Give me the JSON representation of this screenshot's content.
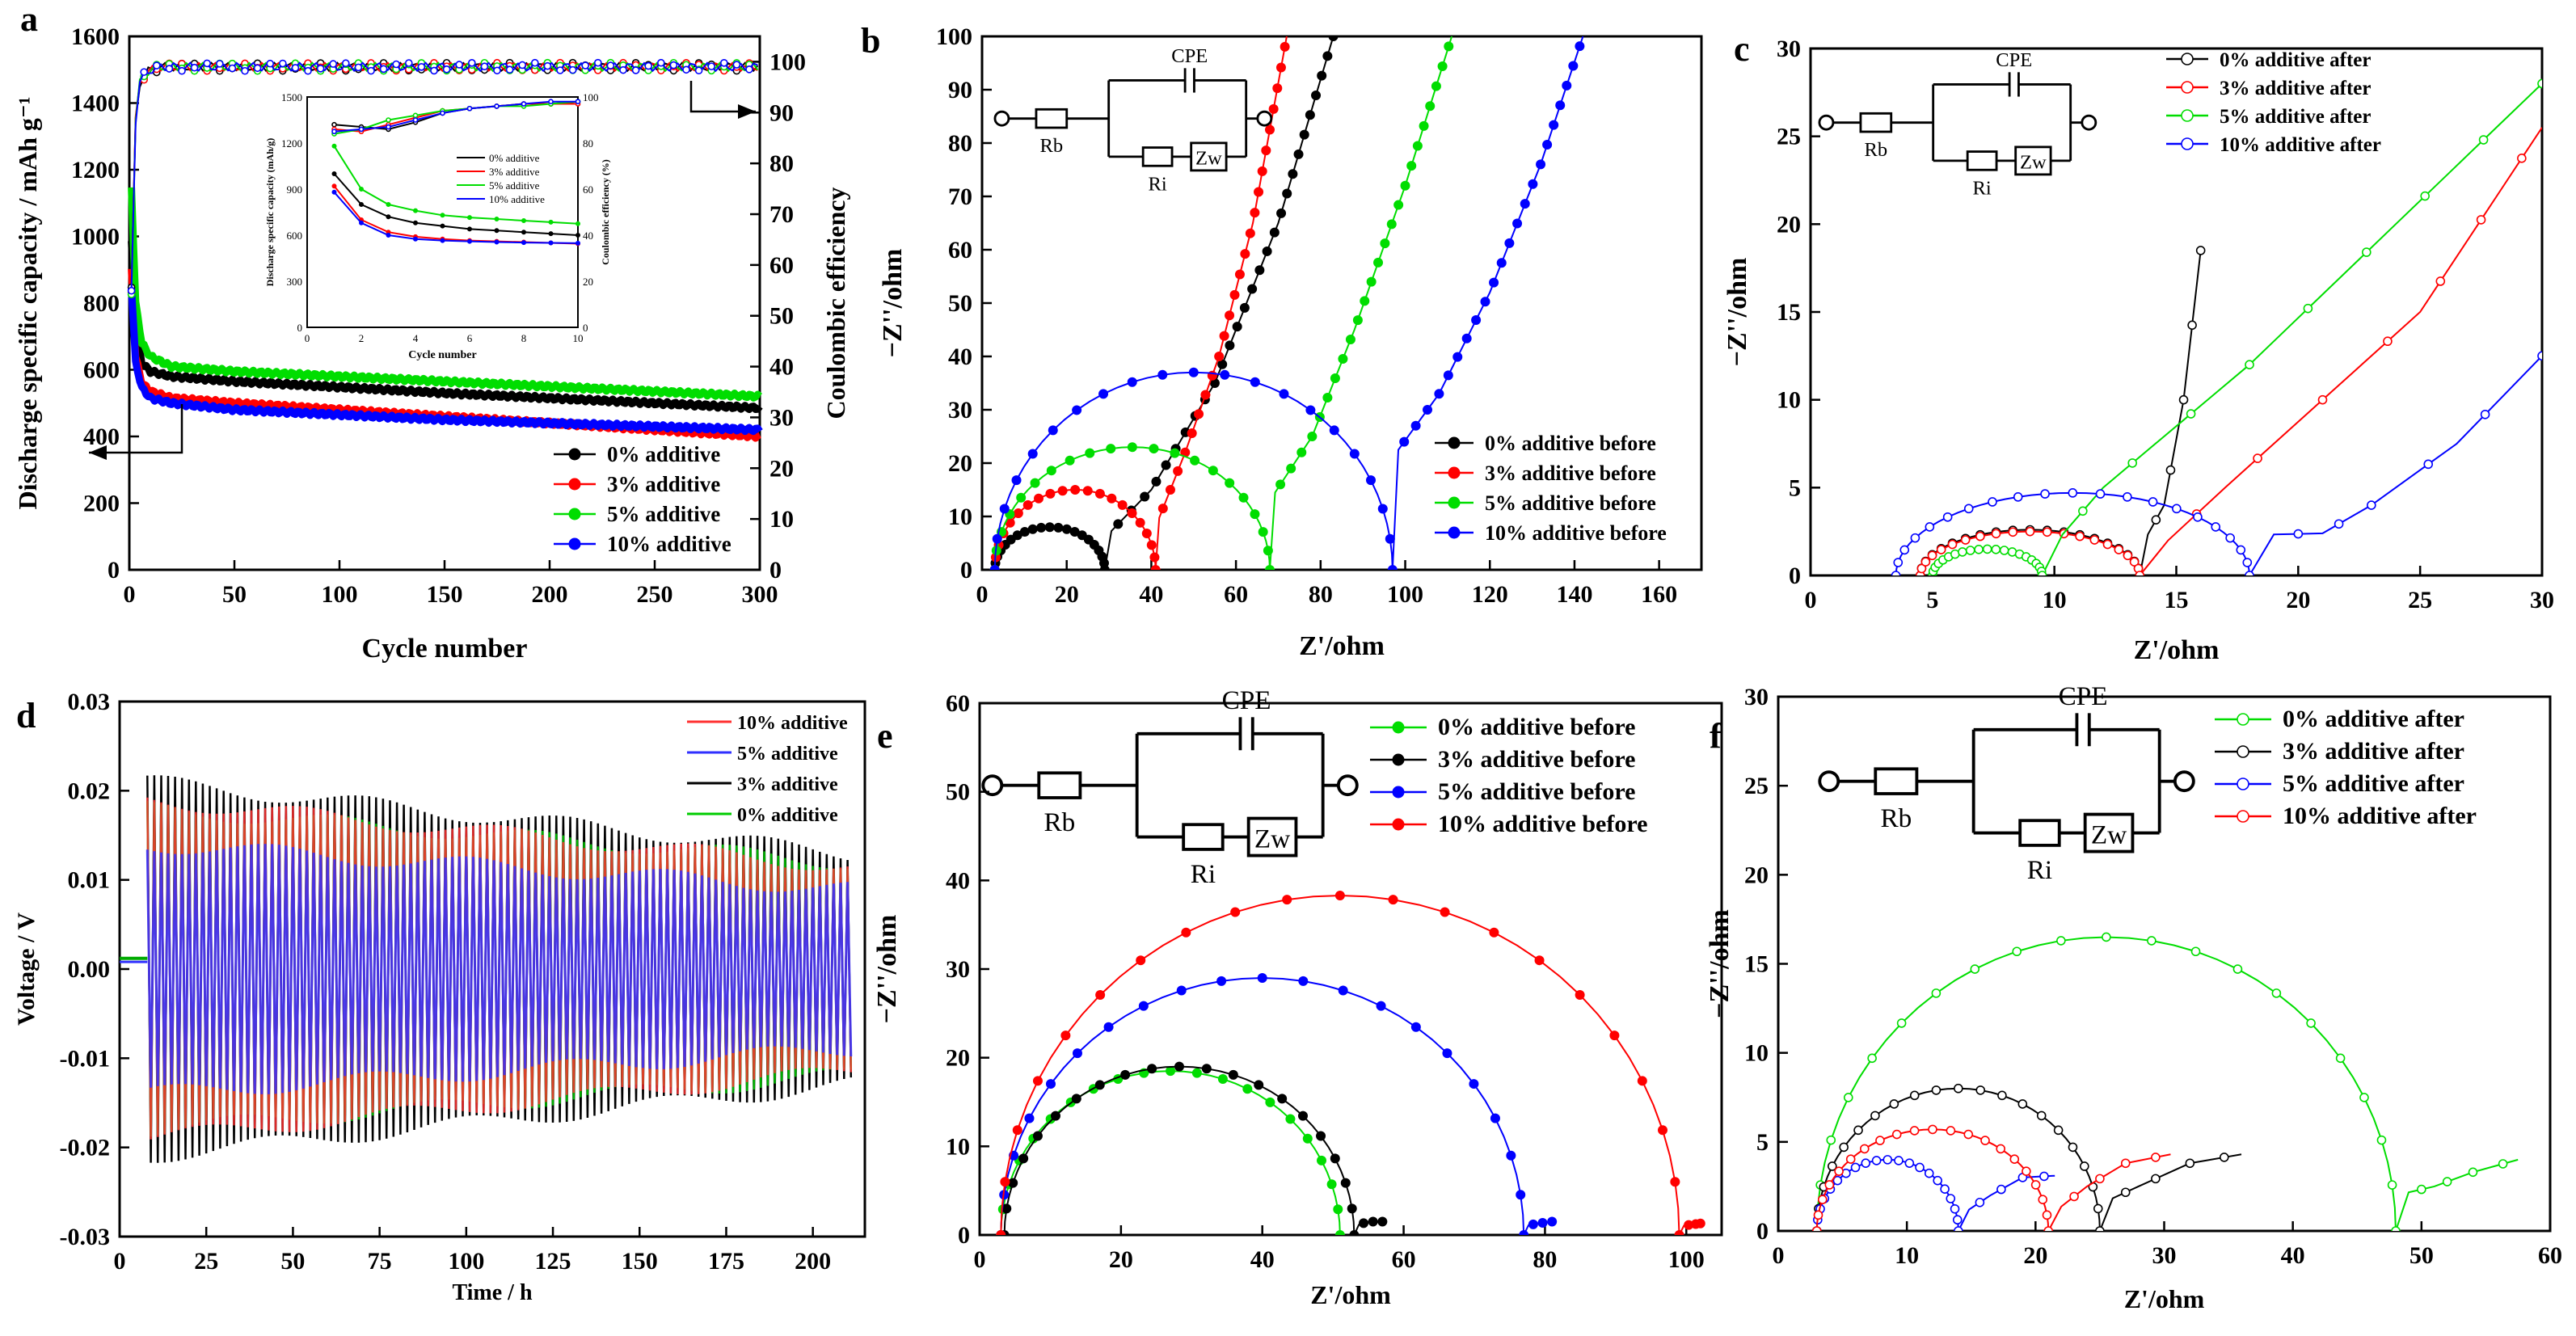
{
  "figure": {
    "panels": [
      "a",
      "b",
      "c",
      "d",
      "e",
      "f"
    ]
  },
  "chart_data": [
    {
      "id": "a",
      "type": "scatter",
      "panel_label": "a",
      "xlabel": "Cycle number",
      "ylabel": "Discharge specific capacity / mAh g⁻¹",
      "y2label": "Coulombic efficiency",
      "xlim": [
        0,
        300
      ],
      "ylim": [
        0,
        1600
      ],
      "y2lim": [
        0,
        105
      ],
      "xticks": [
        0,
        50,
        100,
        150,
        200,
        250,
        300
      ],
      "yticks": [
        0,
        200,
        400,
        600,
        800,
        1000,
        1200,
        1400,
        1600
      ],
      "y2ticks": [
        0,
        10,
        20,
        30,
        40,
        50,
        60,
        70,
        80,
        90,
        100
      ],
      "legend": [
        "0% additive",
        "3% additive",
        "5% additive",
        "10% additive"
      ],
      "colors": [
        "#000000",
        "#ff0000",
        "#00dd00",
        "#0000ff"
      ],
      "series": [
        {
          "name": "0% additive",
          "x": [
            1,
            3,
            6,
            10,
            20,
            50,
            100,
            150,
            200,
            250,
            300
          ],
          "values": [
            980,
            720,
            620,
            595,
            580,
            565,
            548,
            530,
            515,
            500,
            485
          ]
        },
        {
          "name": "3% additive",
          "x": [
            1,
            3,
            6,
            10,
            20,
            50,
            100,
            150,
            200,
            250,
            300
          ],
          "values": [
            900,
            640,
            560,
            535,
            515,
            500,
            480,
            460,
            440,
            420,
            400
          ]
        },
        {
          "name": "5% additive",
          "x": [
            1,
            3,
            6,
            10,
            20,
            50,
            100,
            150,
            200,
            250,
            300
          ],
          "values": [
            1150,
            800,
            680,
            640,
            610,
            595,
            580,
            565,
            550,
            535,
            520
          ]
        },
        {
          "name": "10% additive",
          "x": [
            1,
            3,
            6,
            10,
            20,
            50,
            100,
            150,
            200,
            250,
            300
          ],
          "values": [
            850,
            620,
            545,
            515,
            500,
            480,
            465,
            450,
            440,
            430,
            420
          ]
        }
      ],
      "coulombic_efficiency": {
        "x": [
          1,
          2,
          4,
          8,
          15,
          300
        ],
        "values": [
          55,
          82,
          95,
          98,
          99,
          99
        ]
      },
      "inset": {
        "xlabel": "Cycle number",
        "ylabel": "Discharge specific capacity (mAh/g)",
        "y2label": "Coulombic efficiency (%)",
        "xlim": [
          0,
          10
        ],
        "ylim": [
          0,
          1500
        ],
        "y2lim": [
          0,
          100
        ],
        "xticks": [
          0,
          2,
          4,
          6,
          8,
          10
        ],
        "yticks": [
          0,
          300,
          600,
          900,
          1200,
          1500
        ],
        "y2ticks": [
          0,
          20,
          40,
          60,
          80,
          100
        ],
        "legend": [
          "0% additive",
          "3% additive",
          "5% additive",
          "10% additive"
        ],
        "x": [
          1,
          2,
          3,
          4,
          5,
          6,
          7,
          8,
          9,
          10
        ],
        "capacity": [
          [
            1000,
            800,
            720,
            680,
            660,
            640,
            630,
            620,
            610,
            600
          ],
          [
            920,
            700,
            620,
            590,
            575,
            565,
            560,
            555,
            550,
            545
          ],
          [
            1180,
            900,
            800,
            760,
            730,
            715,
            705,
            695,
            685,
            675
          ],
          [
            880,
            680,
            600,
            575,
            565,
            560,
            555,
            552,
            550,
            548
          ]
        ],
        "efficiency": [
          [
            88,
            87,
            86,
            89,
            93,
            95,
            96,
            97,
            97,
            98
          ],
          [
            86,
            85,
            88,
            91,
            94,
            95,
            96,
            97,
            97,
            97
          ],
          [
            84,
            86,
            90,
            92,
            94,
            95,
            96,
            96,
            97,
            98
          ],
          [
            85,
            86,
            87,
            90,
            93,
            95,
            96,
            97,
            98,
            98
          ]
        ]
      }
    },
    {
      "id": "b",
      "type": "scatter",
      "panel_label": "b",
      "xlabel": "Z'/ohm",
      "ylabel": "−Z''/ohm",
      "xlim": [
        0,
        170
      ],
      "ylim": [
        0,
        100
      ],
      "xticks": [
        0,
        20,
        40,
        60,
        80,
        100,
        120,
        140,
        160
      ],
      "yticks": [
        0,
        10,
        20,
        30,
        40,
        50,
        60,
        70,
        80,
        90,
        100
      ],
      "legend": [
        "0% additive before",
        "3% additive before",
        "5% additive before",
        "10% additive before"
      ],
      "colors": [
        "#000000",
        "#ff0000",
        "#00dd00",
        "#0000ff"
      ],
      "markers": "filled",
      "series": [
        {
          "name": "0% additive before",
          "rs": 3,
          "semi_end": 29,
          "tail": [
            [
              29,
              6
            ],
            [
              40,
              15
            ],
            [
              55,
              35
            ],
            [
              70,
              65
            ],
            [
              83,
              100
            ]
          ]
        },
        {
          "name": "3% additive before",
          "rs": 3,
          "semi_end": 41,
          "tail": [
            [
              41,
              8
            ],
            [
              48,
              22
            ],
            [
              56,
              40
            ],
            [
              64,
              65
            ],
            [
              72,
              100
            ]
          ]
        },
        {
          "name": "5% additive before",
          "rs": 3,
          "semi_end": 68,
          "tail": [
            [
              68,
              13
            ],
            [
              78,
              25
            ],
            [
              88,
              45
            ],
            [
              100,
              72
            ],
            [
              111,
              100
            ]
          ]
        },
        {
          "name": "10% additive before",
          "rs": 3,
          "semi_end": 97,
          "tail": [
            [
              97,
              21
            ],
            [
              108,
              33
            ],
            [
              120,
              52
            ],
            [
              132,
              76
            ],
            [
              142,
              100
            ]
          ]
        }
      ],
      "semicircle_peak": [
        8,
        15,
        23,
        37
      ],
      "circuit": {
        "cpe": "CPE",
        "rb": "Rb",
        "ri": "Ri",
        "zw": "Zw"
      }
    },
    {
      "id": "c",
      "type": "scatter",
      "panel_label": "c",
      "xlabel": "Z'/ohm",
      "ylabel": "−Z''/ohm",
      "xlim": [
        0,
        30
      ],
      "ylim": [
        0,
        30
      ],
      "xticks": [
        0,
        5,
        10,
        15,
        20,
        25,
        30
      ],
      "yticks": [
        0,
        5,
        10,
        15,
        20,
        25,
        30
      ],
      "legend": [
        "0% additive after",
        "3% additive after",
        "5% additive after",
        "10% additive after"
      ],
      "colors": [
        "#000000",
        "#ff0000",
        "#00dd00",
        "#0000ff"
      ],
      "markers": "open",
      "series": [
        {
          "name": "0% additive after",
          "rs": 4.5,
          "semi_end": 13.5,
          "peak": 2.6,
          "tail": [
            [
              13.5,
              1.5
            ],
            [
              14.5,
              4
            ],
            [
              15.3,
              10
            ],
            [
              16,
              18.5
            ]
          ]
        },
        {
          "name": "3% additive after",
          "rs": 4.5,
          "semi_end": 13.5,
          "peak": 2.5,
          "tail": [
            [
              13.5,
              0.5
            ],
            [
              17,
              5
            ],
            [
              21,
              10
            ],
            [
              25,
              15
            ],
            [
              30,
              25.5
            ]
          ]
        },
        {
          "name": "5% additive after",
          "rs": 5,
          "semi_end": 9.5,
          "peak": 1.5,
          "tail": [
            [
              9.5,
              1
            ],
            [
              12,
              5
            ],
            [
              18,
              12
            ],
            [
              24,
              20
            ],
            [
              30,
              28
            ]
          ]
        },
        {
          "name": "10% additive after",
          "rs": 3.5,
          "semi_end": 18,
          "peak": 4.7,
          "tail": [
            [
              18,
              2.3
            ],
            [
              21,
              2.4
            ],
            [
              23,
              4
            ],
            [
              26.5,
              7.5
            ],
            [
              30,
              12.5
            ]
          ]
        }
      ],
      "circuit": {
        "cpe": "CPE",
        "rb": "Rb",
        "ri": "Ri",
        "zw": "Zw"
      }
    },
    {
      "id": "d",
      "type": "line",
      "panel_label": "d",
      "xlabel": "Time / h",
      "ylabel": "Voltage / V",
      "xlim": [
        0,
        215
      ],
      "ylim": [
        -0.03,
        0.03
      ],
      "xticks": [
        0,
        25,
        50,
        75,
        100,
        125,
        150,
        175,
        200
      ],
      "yticks": [
        -0.03,
        -0.02,
        -0.01,
        0.0,
        0.01,
        0.02,
        0.03
      ],
      "ytick_labels": [
        "-0.03",
        "-0.02",
        "-0.01",
        "0.00",
        "0.01",
        "0.02",
        "0.03"
      ],
      "legend": [
        "10% additive",
        "5% additive",
        "3% additive",
        "0% additive"
      ],
      "colors": [
        "#ff3030",
        "#3030ff",
        "#000000",
        "#00cc00"
      ],
      "series": [
        {
          "name": "3% additive",
          "t_start": 8,
          "t_end": 211,
          "amp_start": 0.021,
          "amp_end": 0.013
        },
        {
          "name": "0% additive",
          "t_start": 8,
          "t_end": 211,
          "amp_start": 0.018,
          "amp_end": 0.012
        },
        {
          "name": "10% additive",
          "t_start": 8,
          "t_end": 211,
          "amp_start": 0.019,
          "amp_end": 0.0115
        },
        {
          "name": "5% additive",
          "t_start": 8,
          "t_end": 211,
          "amp_start": 0.014,
          "amp_end": 0.009
        }
      ]
    },
    {
      "id": "e",
      "type": "scatter",
      "panel_label": "e",
      "xlabel": "Z'/ohm",
      "ylabel": "−Z''/ohm",
      "xlim": [
        0,
        105
      ],
      "ylim": [
        0,
        60
      ],
      "xticks": [
        0,
        20,
        40,
        60,
        80,
        100
      ],
      "yticks": [
        0,
        10,
        20,
        30,
        40,
        50,
        60
      ],
      "legend": [
        "0% additive before",
        "3% additive before",
        "5% additive before",
        "10% additive before"
      ],
      "colors": [
        "#00dd00",
        "#000000",
        "#0000ff",
        "#ff0000"
      ],
      "markers": "filled",
      "series": [
        {
          "name": "0% additive before",
          "rs": 3,
          "semi_end": 51,
          "peak": 18.5,
          "tail": [
            [
              51,
              0.5
            ]
          ]
        },
        {
          "name": "3% additive before",
          "rs": 3.5,
          "semi_end": 53,
          "peak": 19,
          "tail": [
            [
              53,
              1
            ],
            [
              55,
              1.5
            ],
            [
              57,
              1.5
            ]
          ]
        },
        {
          "name": "5% additive before",
          "rs": 3,
          "semi_end": 77,
          "peak": 29,
          "tail": [
            [
              77,
              1
            ],
            [
              79,
              1.3
            ],
            [
              81,
              1.5
            ]
          ]
        },
        {
          "name": "10% additive before",
          "rs": 3,
          "semi_end": 99,
          "peak": 38.3,
          "tail": [
            [
              99,
              1
            ],
            [
              101,
              1.2
            ],
            [
              102,
              1.3
            ]
          ]
        }
      ],
      "circuit": {
        "cpe": "CPE",
        "rb": "Rb",
        "ri": "Ri",
        "zw": "Zw"
      }
    },
    {
      "id": "f",
      "type": "scatter",
      "panel_label": "f",
      "xlabel": "Z'/ohm",
      "ylabel": "−Z''/ohm",
      "xlim": [
        0,
        60
      ],
      "ylim": [
        0,
        30
      ],
      "xticks": [
        0,
        10,
        20,
        30,
        40,
        50,
        60
      ],
      "yticks": [
        0,
        5,
        10,
        15,
        20,
        25,
        30
      ],
      "legend": [
        "0% additive after",
        "3% additive after",
        "5% additive after",
        "10% additive after"
      ],
      "colors": [
        "#00dd00",
        "#000000",
        "#0000ff",
        "#ff0000"
      ],
      "markers": "open",
      "series": [
        {
          "name": "0% additive after",
          "rs": 3,
          "semi_end": 48,
          "peak": 16.5,
          "tail": [
            [
              48,
              2
            ],
            [
              51,
              2.5
            ],
            [
              54,
              3.3
            ],
            [
              57.5,
              4
            ]
          ]
        },
        {
          "name": "3% additive after",
          "rs": 3,
          "semi_end": 25,
          "peak": 8,
          "tail": [
            [
              25,
              1.5
            ],
            [
              28,
              2.5
            ],
            [
              32,
              3.8
            ],
            [
              36,
              4.3
            ]
          ]
        },
        {
          "name": "5% additive after",
          "rs": 3,
          "semi_end": 14,
          "peak": 4,
          "tail": [
            [
              14,
              0.8
            ],
            [
              16.5,
              2
            ],
            [
              19,
              3
            ],
            [
              21.5,
              3.1
            ]
          ]
        },
        {
          "name": "10% additive after",
          "rs": 3,
          "semi_end": 21,
          "peak": 5.7,
          "tail": [
            [
              21,
              0.8
            ],
            [
              24,
              2.5
            ],
            [
              27,
              3.8
            ],
            [
              30.5,
              4.3
            ]
          ]
        }
      ],
      "circuit": {
        "cpe": "CPE",
        "rb": "Rb",
        "ri": "Ri",
        "zw": "Zw"
      }
    }
  ]
}
